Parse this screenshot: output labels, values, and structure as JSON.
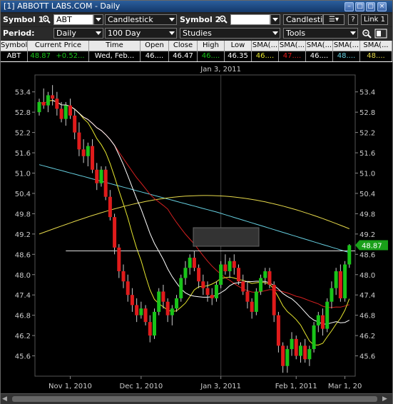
{
  "window": {
    "title": "[1] ABBOTT LABS.COM - Daily"
  },
  "toolbar": {
    "symbol1_label": "Symbol 1:",
    "symbol1_value": "ABT",
    "chart_type": "Candlestick",
    "symbol2_label": "Symbol 2:",
    "symbol2_value": "",
    "chart_type2": "Candlestick",
    "help_label": "?",
    "link_label": "Link 1",
    "period_label": "Period:",
    "period_value": "Daily",
    "range_value": "100 Day",
    "studies_value": "Studies",
    "tools_value": "Tools"
  },
  "quote": {
    "headers": [
      "Symbol",
      "Current Price",
      "Time",
      "Open",
      "Close",
      "High",
      "Low",
      "SMA(...",
      "SMA(...",
      "SMA(...",
      "SMA(...",
      "SMA(..."
    ],
    "row": {
      "symbol": "ABT",
      "price": "48.87",
      "change": "+0.52...",
      "time": "Wed, Feb...",
      "open": "46....",
      "close": "46.47",
      "high": "46....",
      "low": "46.35",
      "sma1": "46....",
      "sma2": "47....",
      "sma3": "46....",
      "sma4": "48....",
      "sma5": "48...."
    }
  },
  "chart_data": {
    "type": "candlestick",
    "title": "",
    "crosshair_label": "Jan 3, 2011",
    "last_price_label": "48.87",
    "y_ticks": [
      "53.4",
      "52.8",
      "52.2",
      "51.6",
      "51.0",
      "50.4",
      "49.8",
      "49.2",
      "48.6",
      "48.0",
      "47.4",
      "46.8",
      "46.2",
      "45.6"
    ],
    "ylim": [
      45.0,
      53.9
    ],
    "x_ticks": [
      "Nov 1, 2010",
      "Dec 1, 2010",
      "Jan 3, 2011",
      "Feb 1, 2011",
      "Mar 1, 20"
    ],
    "colors": {
      "up": "#19c419",
      "down": "#e01b1b",
      "sma_fast": "#ffffff",
      "sma_mid": "#e6e62e",
      "sma_red": "#d42020",
      "sma_cyan": "#66cfe0",
      "sma_yellow_long": "#e6d94a"
    },
    "candles": [
      [
        52.8,
        53.2,
        52.7,
        53.1
      ],
      [
        53.1,
        53.5,
        52.9,
        53.0
      ],
      [
        53.0,
        53.4,
        52.8,
        53.3
      ],
      [
        53.3,
        53.6,
        53.0,
        53.2
      ],
      [
        53.2,
        53.4,
        52.7,
        52.9
      ],
      [
        52.9,
        53.1,
        52.5,
        52.6
      ],
      [
        52.6,
        53.1,
        52.4,
        53.0
      ],
      [
        53.0,
        53.2,
        52.6,
        52.7
      ],
      [
        52.7,
        52.9,
        52.0,
        52.2
      ],
      [
        52.2,
        52.5,
        51.5,
        51.7
      ],
      [
        51.7,
        52.0,
        51.3,
        51.5
      ],
      [
        51.5,
        51.9,
        51.2,
        51.8
      ],
      [
        51.8,
        52.0,
        51.0,
        51.1
      ],
      [
        51.1,
        51.3,
        50.5,
        50.7
      ],
      [
        50.7,
        51.2,
        50.6,
        51.1
      ],
      [
        51.1,
        51.2,
        50.2,
        50.3
      ],
      [
        50.3,
        50.5,
        49.6,
        49.7
      ],
      [
        49.7,
        49.8,
        48.6,
        48.8
      ],
      [
        48.8,
        48.9,
        47.9,
        48.1
      ],
      [
        48.1,
        48.3,
        47.6,
        47.8
      ],
      [
        47.8,
        48.0,
        47.2,
        47.4
      ],
      [
        47.4,
        47.6,
        46.9,
        47.1
      ],
      [
        47.1,
        47.3,
        46.6,
        46.8
      ],
      [
        46.8,
        47.2,
        46.7,
        47.0
      ],
      [
        47.0,
        47.1,
        46.5,
        46.6
      ],
      [
        46.6,
        46.8,
        46.0,
        46.2
      ],
      [
        46.2,
        47.0,
        46.1,
        46.9
      ],
      [
        46.9,
        47.6,
        46.8,
        47.5
      ],
      [
        47.5,
        47.7,
        47.0,
        47.2
      ],
      [
        47.2,
        47.3,
        46.6,
        46.8
      ],
      [
        46.8,
        47.1,
        46.5,
        47.0
      ],
      [
        47.0,
        47.4,
        46.9,
        47.3
      ],
      [
        47.3,
        48.0,
        47.2,
        47.9
      ],
      [
        47.9,
        48.4,
        47.7,
        48.2
      ],
      [
        48.2,
        48.6,
        48.0,
        48.5
      ],
      [
        48.5,
        48.7,
        48.1,
        48.2
      ],
      [
        48.2,
        48.3,
        47.6,
        47.8
      ],
      [
        47.8,
        48.0,
        47.4,
        47.6
      ],
      [
        47.6,
        47.8,
        47.2,
        47.4
      ],
      [
        47.4,
        47.6,
        47.1,
        47.3
      ],
      [
        47.3,
        47.8,
        47.2,
        47.7
      ],
      [
        47.7,
        48.4,
        47.6,
        48.3
      ],
      [
        48.3,
        48.6,
        48.0,
        48.1
      ],
      [
        48.1,
        48.5,
        47.9,
        48.4
      ],
      [
        48.4,
        48.6,
        48.0,
        48.2
      ],
      [
        48.2,
        48.3,
        47.7,
        47.8
      ],
      [
        47.8,
        48.0,
        47.4,
        47.5
      ],
      [
        47.5,
        47.8,
        47.0,
        47.2
      ],
      [
        47.2,
        47.3,
        46.7,
        46.9
      ],
      [
        46.9,
        47.6,
        46.8,
        47.5
      ],
      [
        47.5,
        48.0,
        47.4,
        47.9
      ],
      [
        47.9,
        48.2,
        47.7,
        48.1
      ],
      [
        48.1,
        48.2,
        47.6,
        47.7
      ],
      [
        47.7,
        47.8,
        46.6,
        46.8
      ],
      [
        46.8,
        46.9,
        45.7,
        45.9
      ],
      [
        45.9,
        46.0,
        45.1,
        45.3
      ],
      [
        45.3,
        45.9,
        45.1,
        45.8
      ],
      [
        45.8,
        46.3,
        45.6,
        46.1
      ],
      [
        46.1,
        46.2,
        45.5,
        45.6
      ],
      [
        45.6,
        46.0,
        45.4,
        45.9
      ],
      [
        45.9,
        46.1,
        45.4,
        45.5
      ],
      [
        45.5,
        45.9,
        45.3,
        45.8
      ],
      [
        45.8,
        46.6,
        45.7,
        46.5
      ],
      [
        46.5,
        46.9,
        46.3,
        46.8
      ],
      [
        46.8,
        47.0,
        46.2,
        46.4
      ],
      [
        46.4,
        47.3,
        46.3,
        47.2
      ],
      [
        47.2,
        47.8,
        47.0,
        47.6
      ],
      [
        47.6,
        48.2,
        47.4,
        48.1
      ],
      [
        48.1,
        48.3,
        47.2,
        47.3
      ],
      [
        47.3,
        48.4,
        47.2,
        48.3
      ],
      [
        48.3,
        48.9,
        48.2,
        48.87
      ]
    ]
  }
}
